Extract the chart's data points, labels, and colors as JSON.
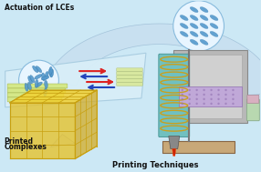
{
  "background_color": "#cce8f5",
  "fig_width": 2.86,
  "fig_height": 1.89,
  "dpi": 100,
  "labels": {
    "actuation": "Actuation of LCEs",
    "printed": "Printed\nComplexes",
    "printing": "Printing Techniques"
  },
  "text_color_dark": "#111111",
  "label_fontsizes": {
    "actuation": 5.5,
    "printed": 5.5,
    "printing": 6.0
  }
}
